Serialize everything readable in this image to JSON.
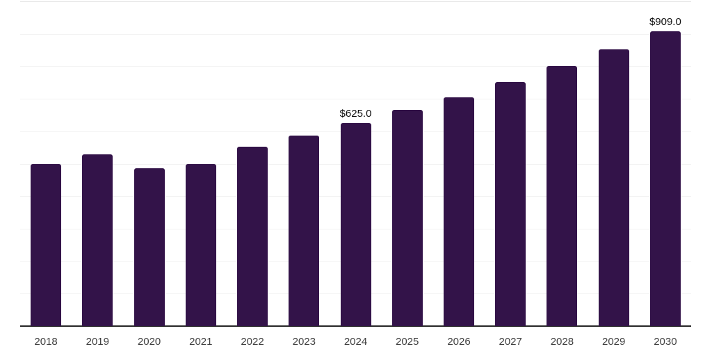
{
  "chart_data": {
    "type": "bar",
    "title": "",
    "xlabel": "",
    "ylabel": "",
    "categories": [
      "2018",
      "2019",
      "2020",
      "2021",
      "2022",
      "2023",
      "2024",
      "2025",
      "2026",
      "2027",
      "2028",
      "2029",
      "2030"
    ],
    "values": [
      500,
      528,
      486,
      500,
      552,
      587,
      625,
      665,
      704,
      752,
      800,
      853,
      909
    ],
    "point_labels": [
      "",
      "",
      "",
      "",
      "",
      "",
      "$625.0",
      "",
      "",
      "",
      "",
      "",
      "$909.0"
    ],
    "ylim": [
      0,
      1000
    ],
    "gridline_step": 100,
    "grid": "horizontal-only",
    "legend_position": "none",
    "bar_color": "#331349",
    "colors": {
      "background": "#ffffff",
      "axis_line": "#262626",
      "gridline": "#f3f3f3",
      "gridline_top": "#e2e2e2",
      "tick_label": "#404040",
      "value_label": "#0d0d0d"
    }
  }
}
